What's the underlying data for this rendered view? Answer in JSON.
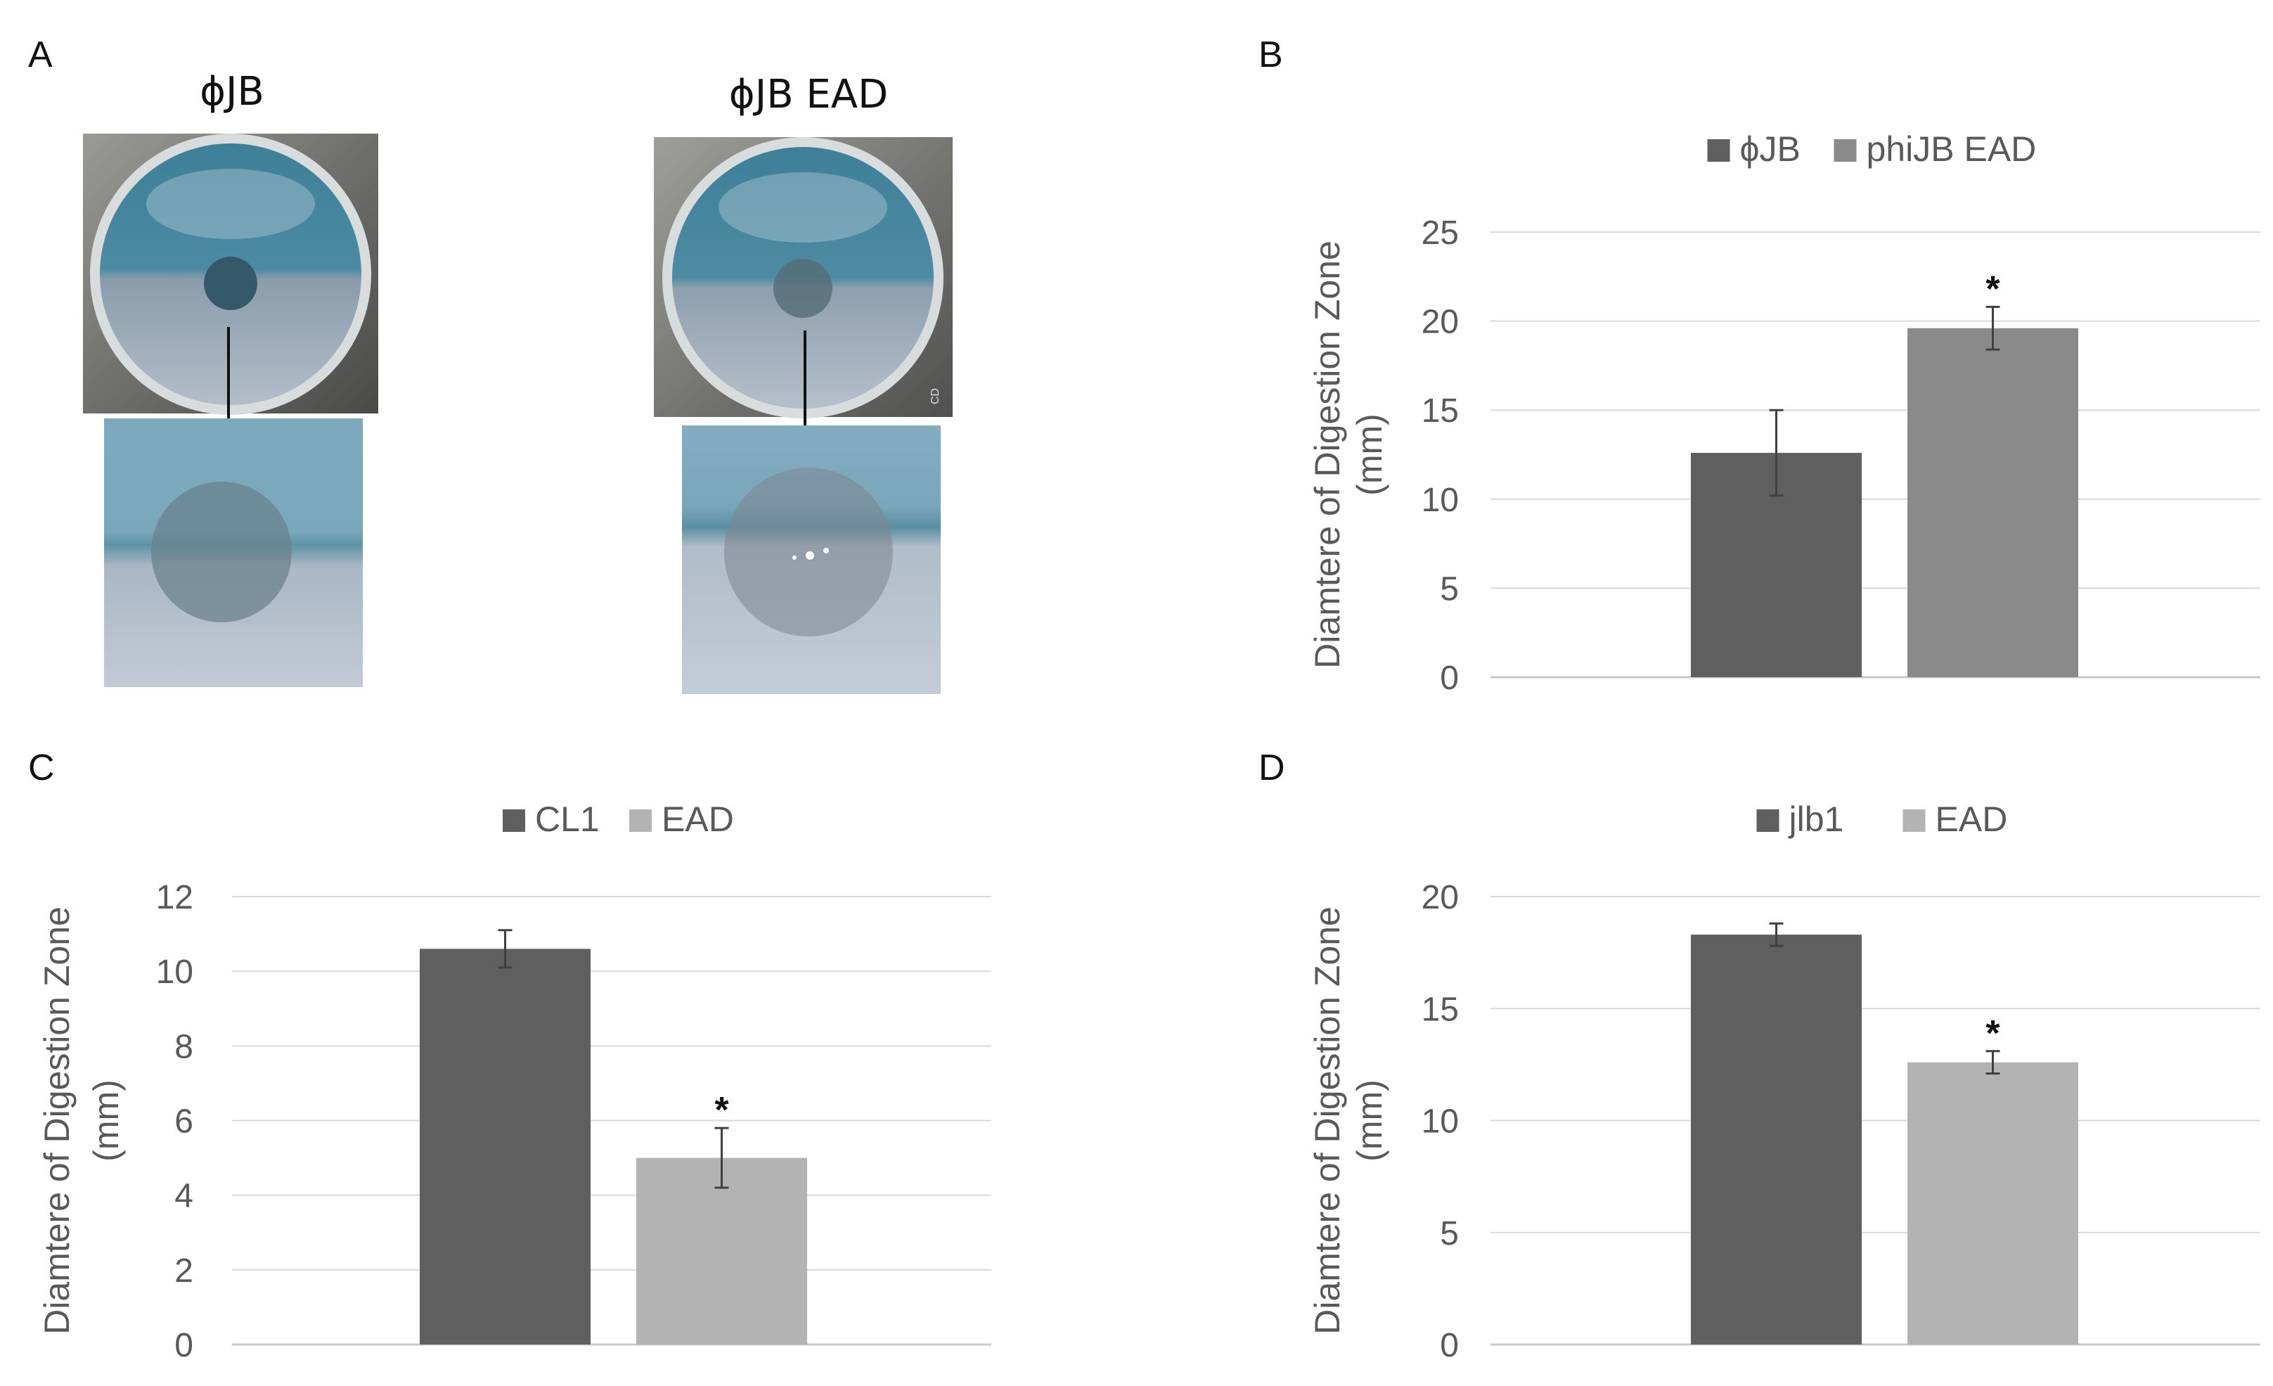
{
  "panel_labels": {
    "a": "A",
    "b": "B",
    "c": "C",
    "d": "D"
  },
  "panel_a": {
    "left_title": "ϕJB",
    "right_title": "ϕJB EAD",
    "photo_watermark": "CD"
  },
  "chart_data": [
    {
      "id": "B",
      "type": "bar",
      "categories": [
        ""
      ],
      "series": [
        {
          "name": "ϕJB",
          "values": [
            12.6
          ],
          "error": [
            2.4
          ],
          "color": "#5f5f5f",
          "significant": false
        },
        {
          "name": "phiJB EAD",
          "values": [
            19.6
          ],
          "error": [
            1.2
          ],
          "color": "#8a8a8a",
          "significant": true
        }
      ],
      "title": "",
      "xlabel": "",
      "ylabel": "Diamtere of Digestion Zone",
      "ylabel_unit": "(mm)",
      "ylim": [
        0,
        25
      ],
      "yticks": [
        0,
        5,
        10,
        15,
        20,
        25
      ],
      "legend_position": "top-center",
      "significance_marker": "*",
      "grid": true
    },
    {
      "id": "C",
      "type": "bar",
      "categories": [
        ""
      ],
      "series": [
        {
          "name": "CL1",
          "values": [
            10.6
          ],
          "error": [
            0.5
          ],
          "color": "#5f5f5f",
          "significant": false
        },
        {
          "name": "EAD",
          "values": [
            5.0
          ],
          "error": [
            0.8
          ],
          "color": "#b3b3b3",
          "significant": true
        }
      ],
      "title": "",
      "xlabel": "",
      "ylabel": "Diamtere of Digestion Zone",
      "ylabel_unit": "(mm)",
      "ylim": [
        0,
        12
      ],
      "yticks": [
        0,
        2,
        4,
        6,
        8,
        10,
        12
      ],
      "legend_position": "top-center",
      "significance_marker": "*",
      "grid": true
    },
    {
      "id": "D",
      "type": "bar",
      "categories": [
        ""
      ],
      "series": [
        {
          "name": "jlb1",
          "values": [
            18.3
          ],
          "error": [
            0.5
          ],
          "color": "#5f5f5f",
          "significant": false
        },
        {
          "name": "EAD",
          "values": [
            12.6
          ],
          "error": [
            0.5
          ],
          "color": "#b3b3b3",
          "significant": true
        }
      ],
      "title": "",
      "xlabel": "",
      "ylabel": "Diamtere of Digestion Zone",
      "ylabel_unit": "(mm)",
      "ylim": [
        0,
        20
      ],
      "yticks": [
        0,
        5,
        10,
        15,
        20
      ],
      "legend_position": "top-center",
      "significance_marker": "*",
      "grid": true
    }
  ]
}
